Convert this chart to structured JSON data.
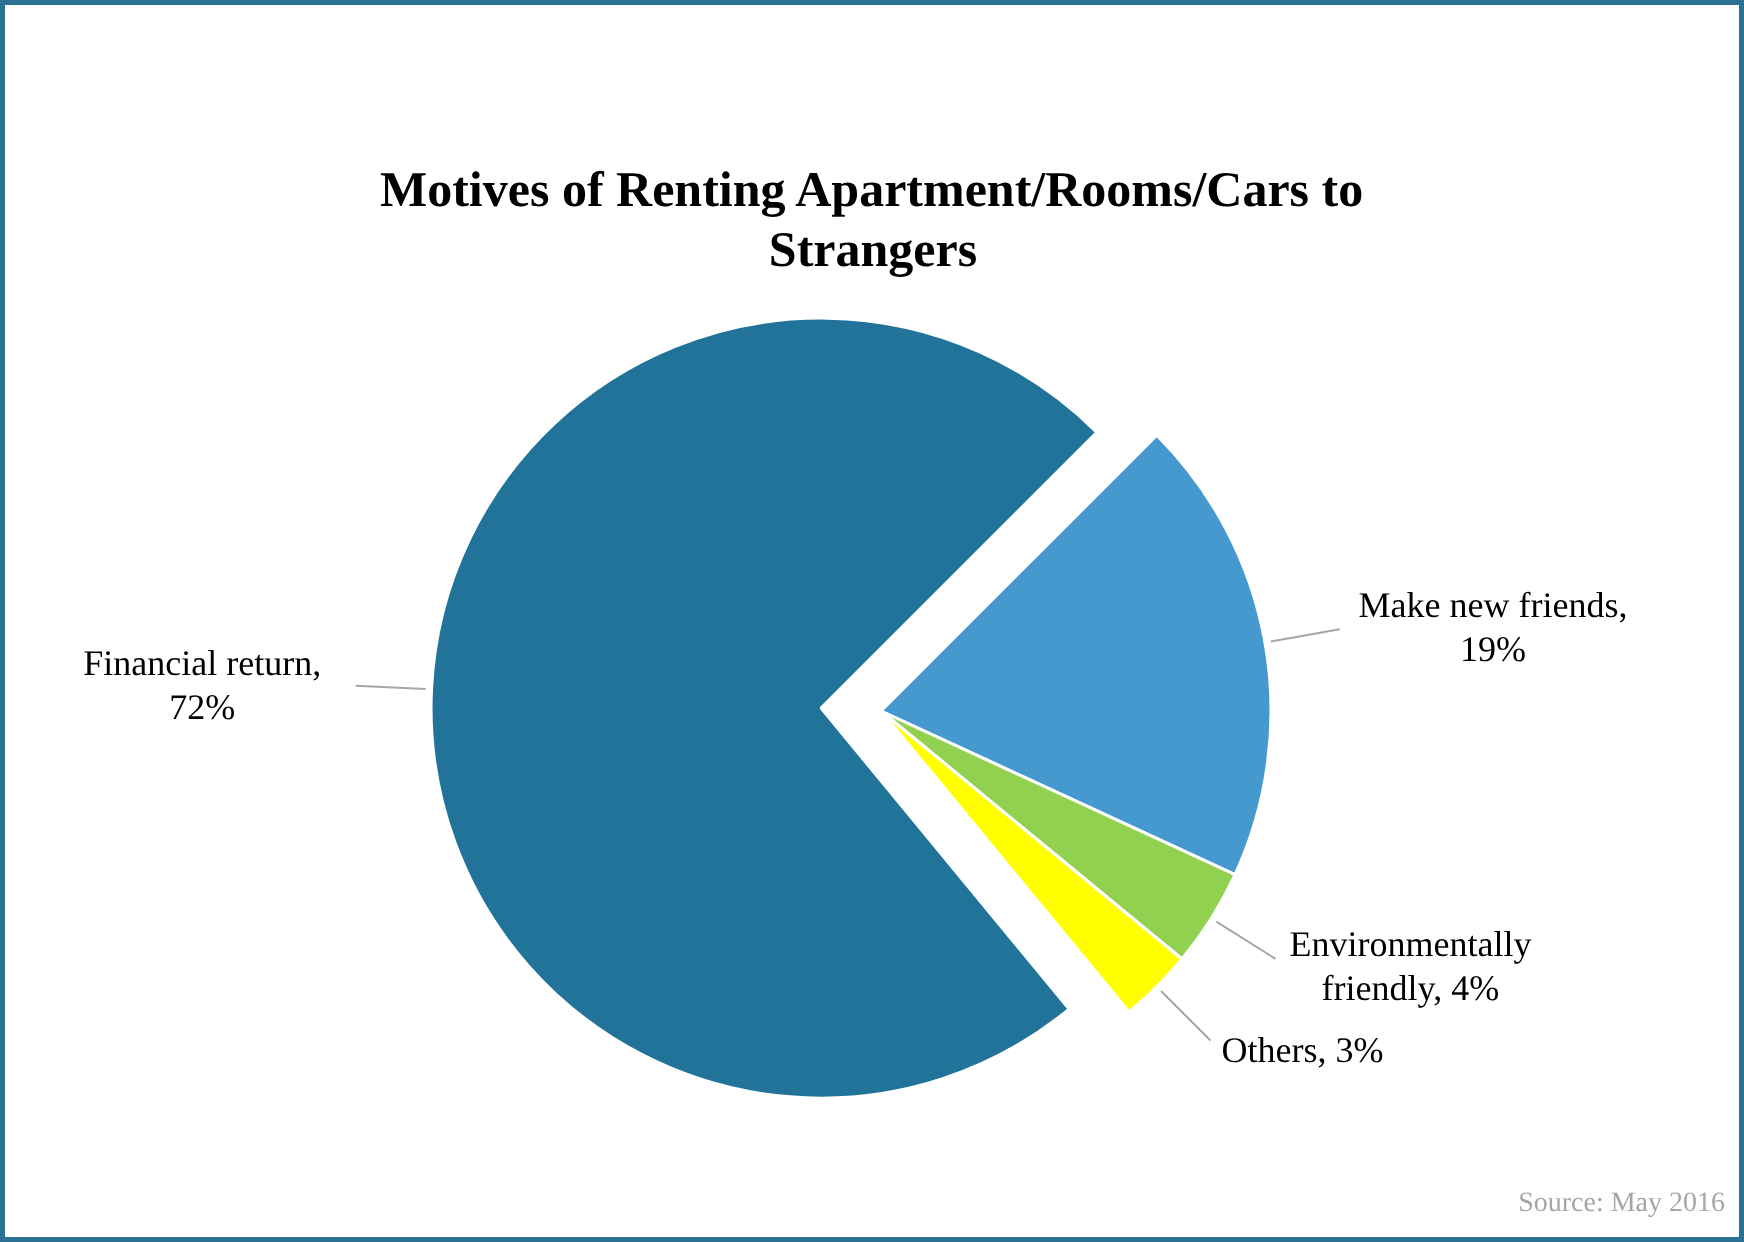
{
  "chart_data": {
    "type": "pie",
    "title": "Motives of Renting Apartment/Rooms/Cars to Strangers",
    "categories": [
      "Make new friends",
      "Environmentally friendly",
      "Others",
      "Financial return"
    ],
    "values": [
      19,
      4,
      3,
      72
    ],
    "colors": [
      "#4699cf",
      "#92d050",
      "#ffff00",
      "#21739a"
    ],
    "value_labels": [
      ", 19%",
      ", 4%",
      ", 3%",
      ", 72%"
    ],
    "annotations": [
      "Source: May 2016"
    ]
  }
}
